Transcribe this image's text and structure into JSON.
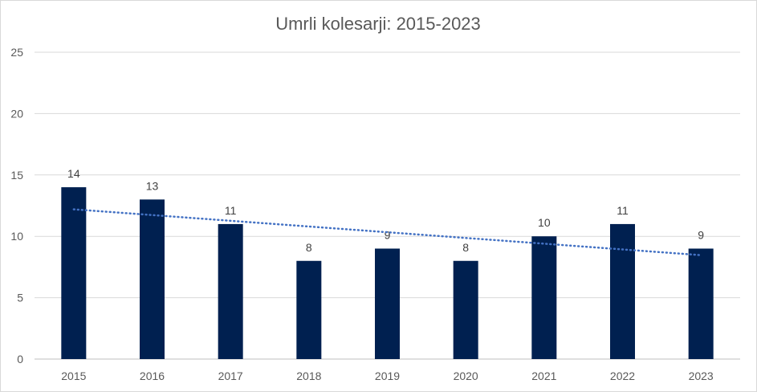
{
  "chart_data": {
    "type": "bar",
    "title": "Umrli kolesarji: 2015-2023",
    "categories": [
      "2015",
      "2016",
      "2017",
      "2018",
      "2019",
      "2020",
      "2021",
      "2022",
      "2023"
    ],
    "values": [
      14,
      13,
      11,
      8,
      9,
      8,
      10,
      11,
      9
    ],
    "xlabel": "",
    "ylabel": "",
    "ylim": [
      0,
      25
    ],
    "yticks": [
      "0",
      "5",
      "10",
      "15",
      "20",
      "25"
    ],
    "grid": true,
    "data_labels": true,
    "trendline": {
      "type": "linear",
      "style": "dotted",
      "color": "#4472c4"
    },
    "colors": {
      "bar": "#002050",
      "trendline": "#4472c4"
    }
  }
}
